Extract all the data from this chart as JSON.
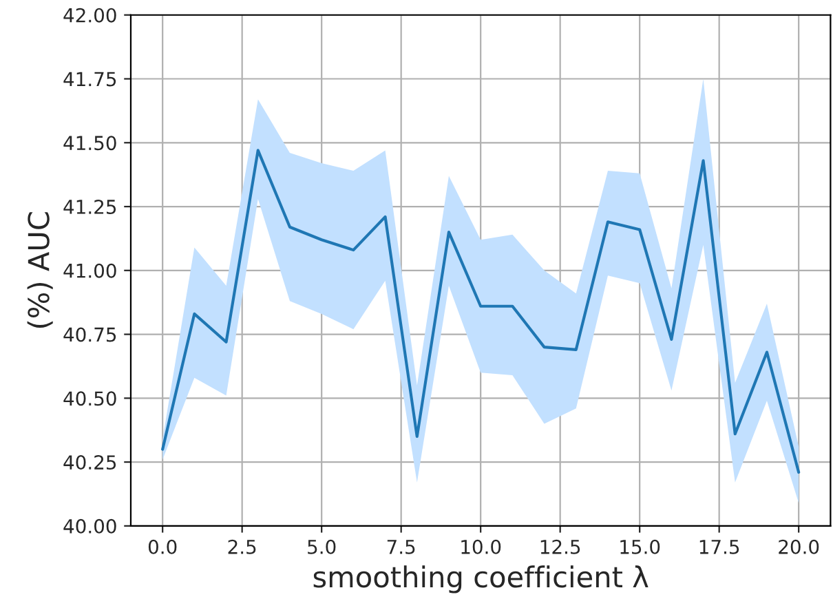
{
  "chart_data": {
    "type": "line",
    "xlabel": "smoothing coefficient λ",
    "ylabel": "(%) AUC",
    "x": [
      0,
      1,
      2,
      3,
      4,
      5,
      6,
      7,
      8,
      9,
      10,
      11,
      12,
      13,
      14,
      15,
      16,
      17,
      18,
      19,
      20
    ],
    "series": [
      {
        "color": "#1f77b4",
        "values": [
          40.3,
          40.83,
          40.72,
          41.47,
          41.17,
          41.12,
          41.08,
          41.21,
          40.35,
          41.15,
          40.86,
          40.86,
          40.7,
          40.69,
          41.19,
          41.16,
          40.73,
          41.43,
          40.36,
          40.68,
          40.21
        ],
        "upper": [
          40.34,
          41.09,
          40.94,
          41.67,
          41.46,
          41.42,
          41.39,
          41.47,
          40.55,
          41.37,
          41.12,
          41.14,
          41.0,
          40.91,
          41.39,
          41.38,
          40.93,
          41.75,
          40.56,
          40.87,
          40.31
        ],
        "lower": [
          40.26,
          40.58,
          40.51,
          41.28,
          40.88,
          40.83,
          40.77,
          40.96,
          40.17,
          40.94,
          40.6,
          40.59,
          40.4,
          40.46,
          40.98,
          40.95,
          40.53,
          41.1,
          40.17,
          40.49,
          40.09
        ]
      }
    ],
    "xlim": [
      -1,
      21
    ],
    "ylim": [
      40,
      42
    ],
    "xticks": [
      {
        "value": 0,
        "label": "0.0"
      },
      {
        "value": 2.5,
        "label": "2.5"
      },
      {
        "value": 5,
        "label": "5.0"
      },
      {
        "value": 7.5,
        "label": "7.5"
      },
      {
        "value": 10,
        "label": "10.0"
      },
      {
        "value": 12.5,
        "label": "12.5"
      },
      {
        "value": 15,
        "label": "15.0"
      },
      {
        "value": 17.5,
        "label": "17.5"
      },
      {
        "value": 20,
        "label": "20.0"
      }
    ],
    "yticks": [
      {
        "value": 40,
        "label": "40.00"
      },
      {
        "value": 40.25,
        "label": "40.25"
      },
      {
        "value": 40.5,
        "label": "40.50"
      },
      {
        "value": 40.75,
        "label": "40.75"
      },
      {
        "value": 41,
        "label": "41.00"
      },
      {
        "value": 41.25,
        "label": "41.25"
      },
      {
        "value": 41.5,
        "label": "41.50"
      },
      {
        "value": 41.75,
        "label": "41.75"
      },
      {
        "value": 42,
        "label": "42.00"
      }
    ],
    "grid": true,
    "line_style": "solid",
    "marker": "none"
  }
}
